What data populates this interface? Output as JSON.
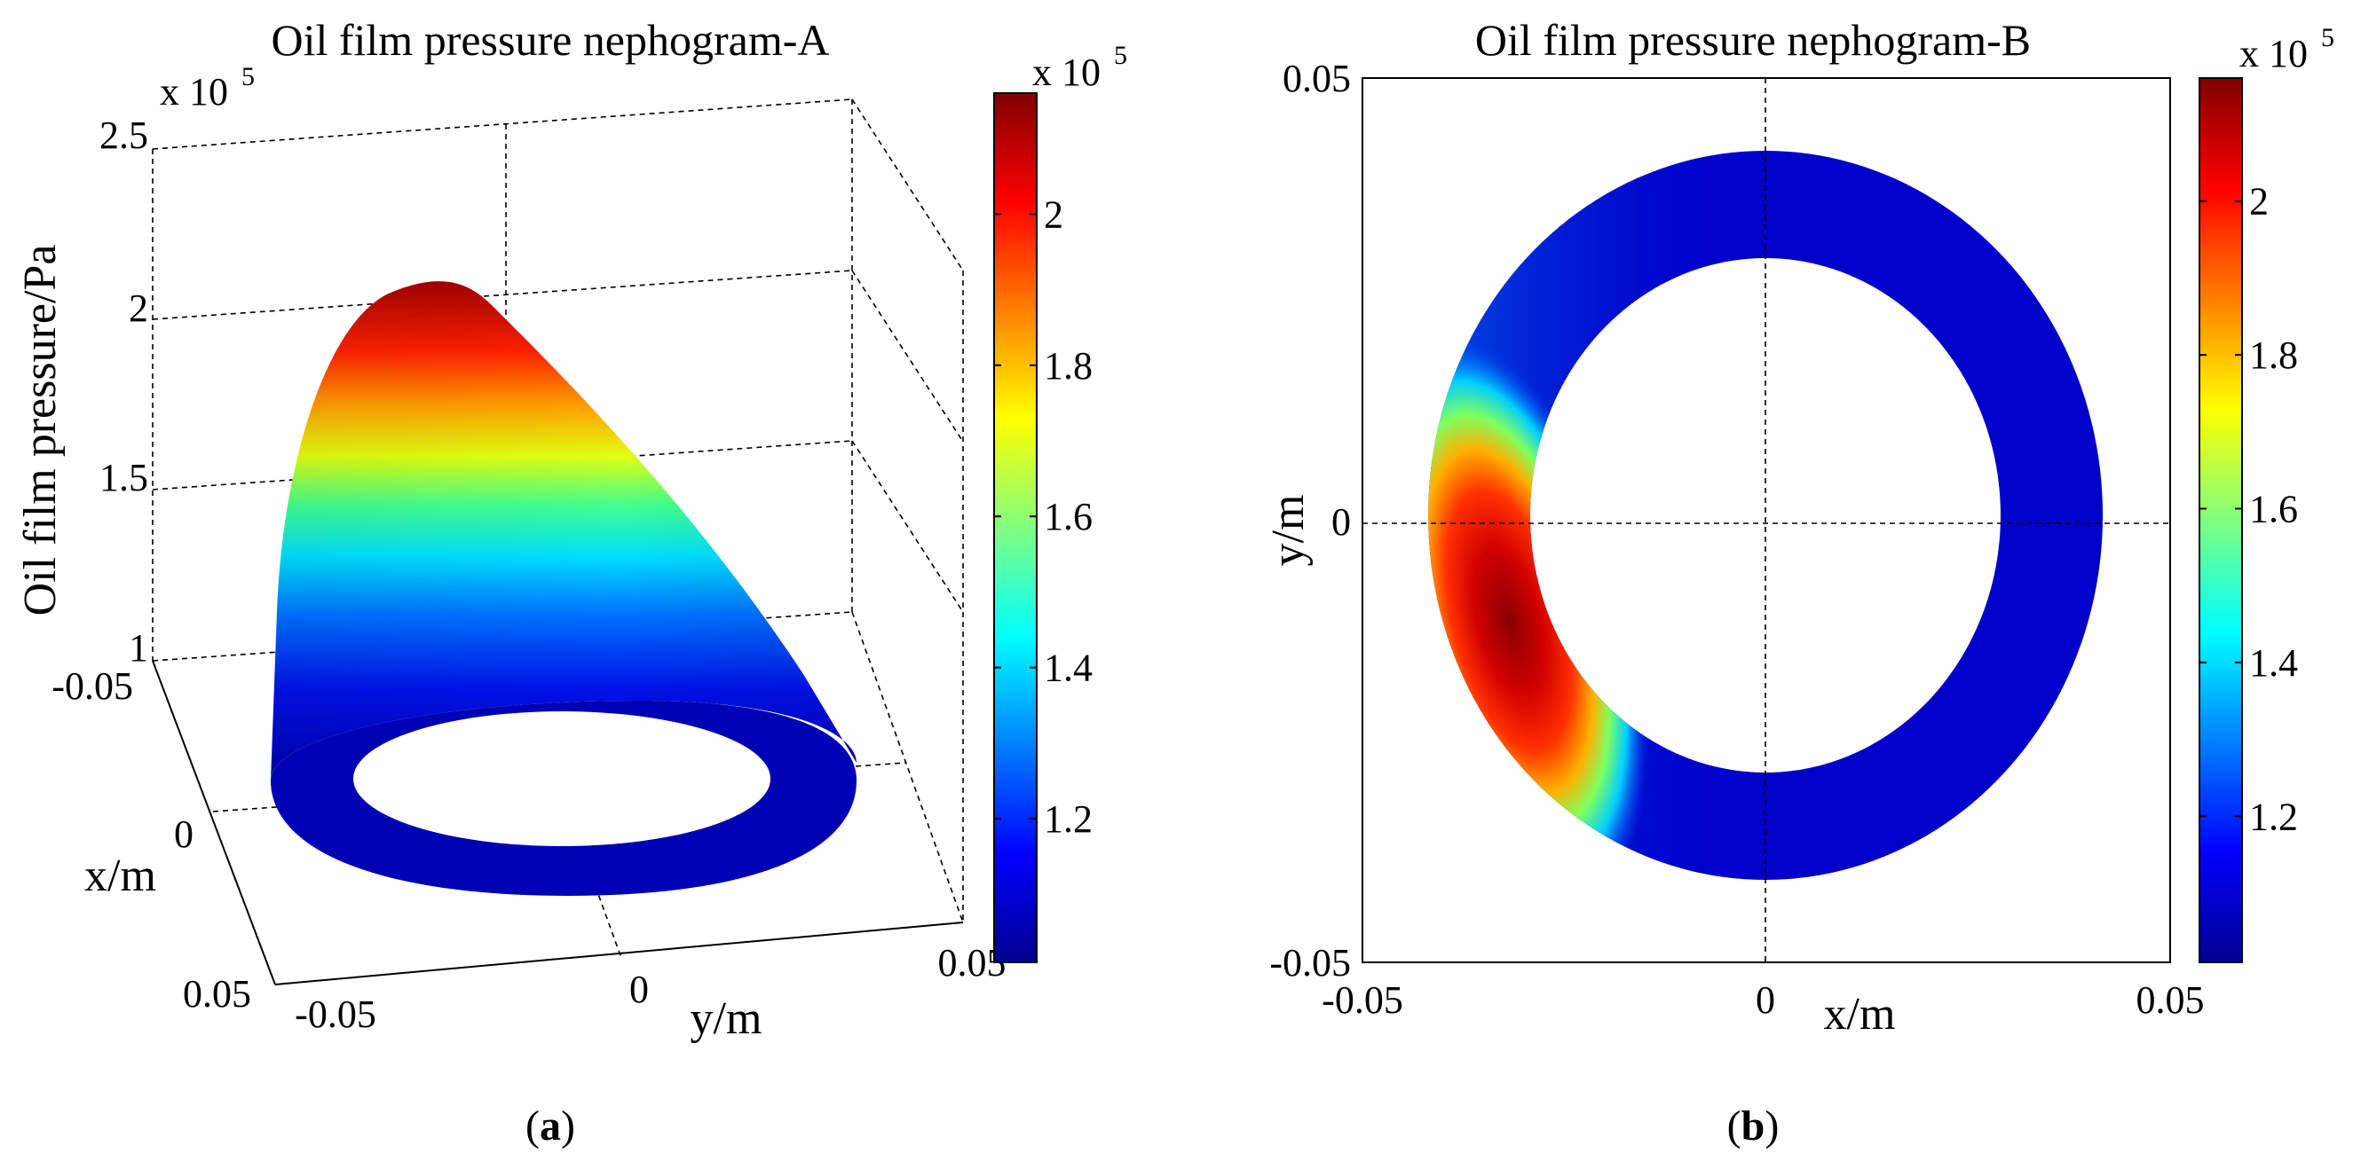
{
  "chart_data": [
    {
      "panel": "a",
      "type": "surface3d",
      "title": "Oil film pressure nephogram-A",
      "zlabel": "Oil film pressure/Pa",
      "xlabel": "x/m",
      "ylabel": "y/m",
      "z_multiplier": "x 10",
      "z_exponent": "5",
      "z_ticks": [
        "1",
        "1.5",
        "2",
        "2.5"
      ],
      "zlim": [
        100000,
        250000
      ],
      "x_ticks": [
        "-0.05",
        "0",
        "0.05"
      ],
      "y_ticks": [
        "-0.05",
        "0",
        "0.05"
      ],
      "xlim": [
        -0.05,
        0.05
      ],
      "ylim": [
        -0.05,
        0.05
      ],
      "grid": true,
      "colormap": "jet",
      "colorbar": {
        "multiplier": "x 10",
        "exponent": "5",
        "ticks": [
          "2",
          "1.8",
          "1.6",
          "1.4",
          "1.2"
        ],
        "range": [
          1.01,
          2.16
        ]
      },
      "pressure_max": 216000,
      "pressure_min": 101000,
      "caption": "a"
    },
    {
      "panel": "b",
      "type": "heatmap",
      "title": "Oil film pressure nephogram-B",
      "xlabel": "x/m",
      "ylabel": "y/m",
      "x_ticks": [
        "-0.05",
        "0",
        "0.05"
      ],
      "y_ticks": [
        "0.05",
        "0",
        "-0.05"
      ],
      "xlim": [
        -0.05,
        0.05
      ],
      "ylim": [
        -0.05,
        0.05
      ],
      "grid": true,
      "colormap": "jet",
      "ring_inner_radius": 0.03,
      "ring_outer_radius": 0.042,
      "colorbar": {
        "multiplier": "x 10",
        "exponent": "5",
        "ticks": [
          "2",
          "1.8",
          "1.6",
          "1.4",
          "1.2"
        ],
        "range": [
          1.01,
          2.16
        ]
      },
      "pressure_max": 216000,
      "pressure_min": 101000,
      "caption": "b"
    }
  ]
}
